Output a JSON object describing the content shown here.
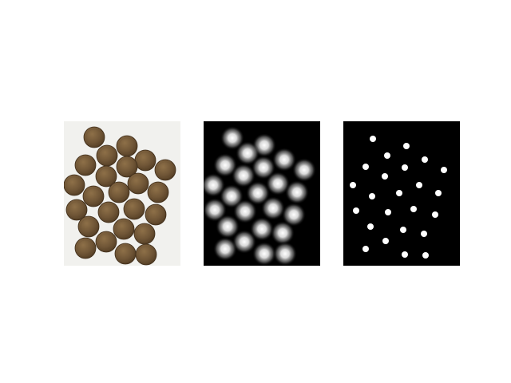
{
  "panels": [
    {
      "id": "original",
      "background": "#f1f1ee",
      "coin_color": "#6f5536"
    },
    {
      "id": "distance-transform",
      "background": "#000000",
      "blob_color": "#ffffff"
    },
    {
      "id": "markers",
      "background": "#000000",
      "marker_color": "#ffffff"
    }
  ]
}
